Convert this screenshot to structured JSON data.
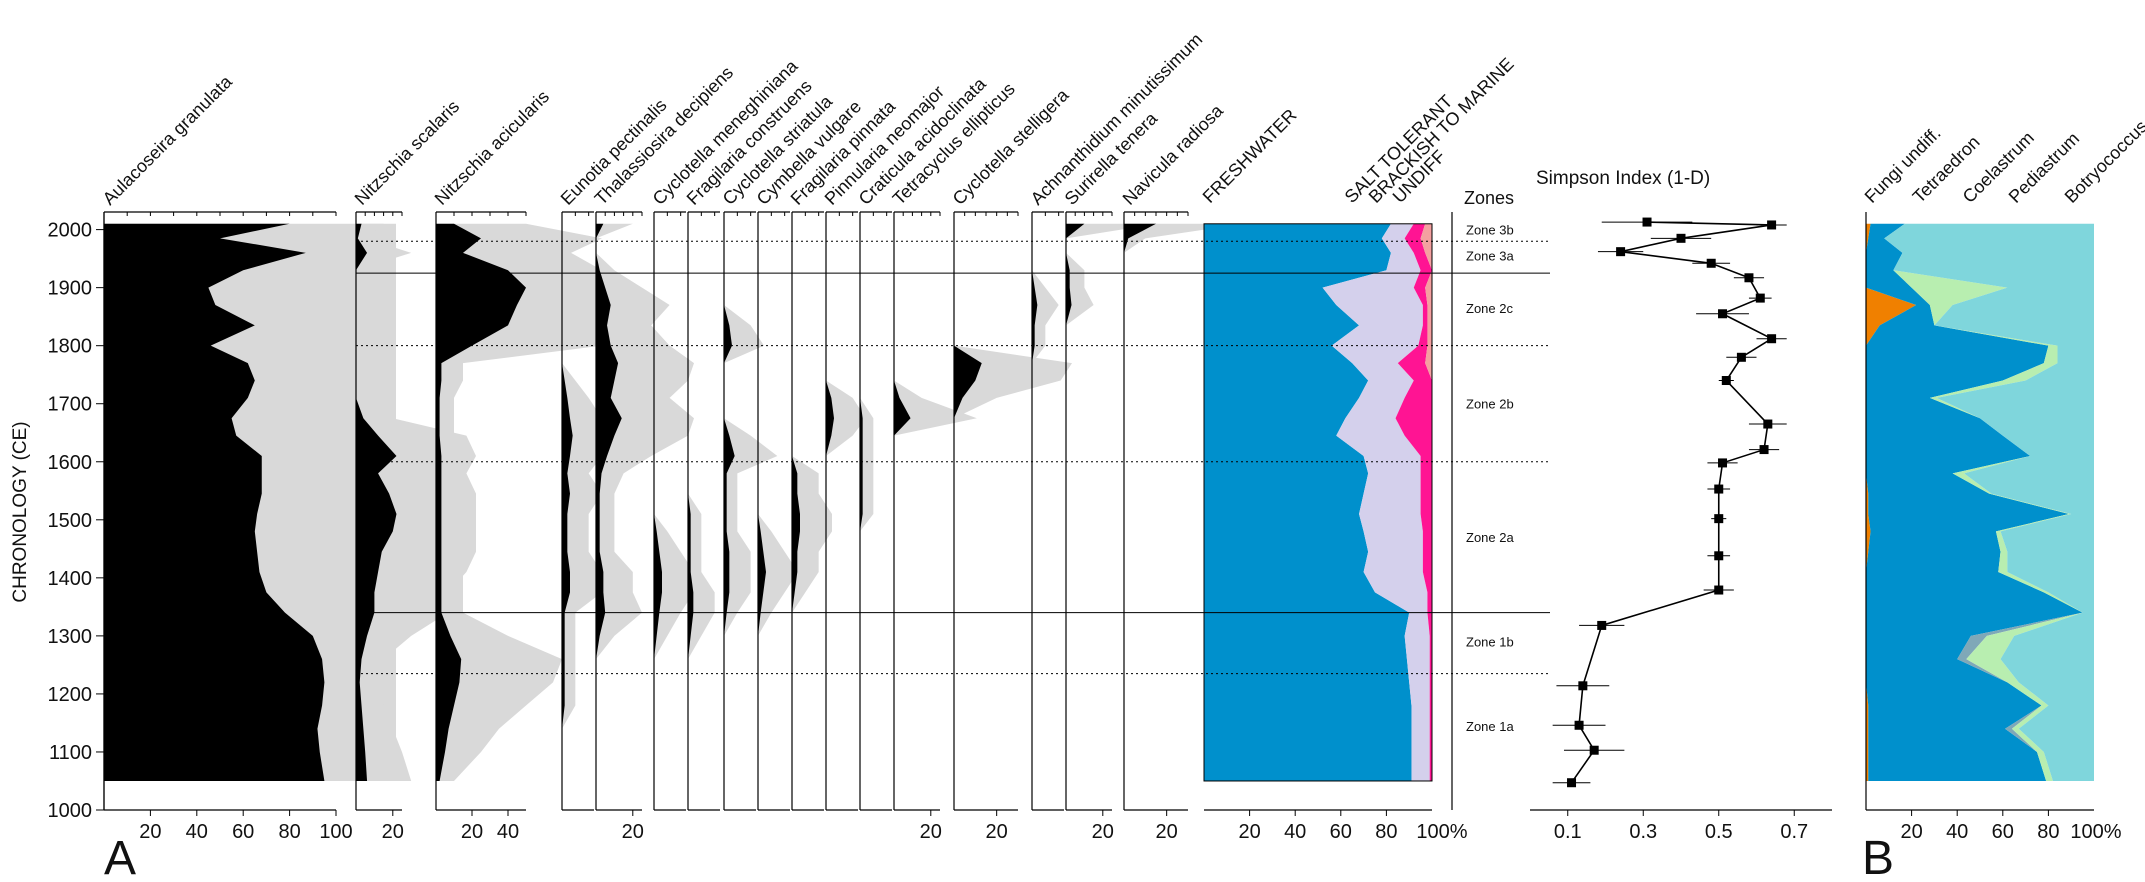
{
  "figure": {
    "panel_labels": [
      "A",
      "B"
    ],
    "y_axis_title": "CHRONOLOGY (CE)",
    "zones_header": "Zones",
    "simpson_title": "Simpson Index (1-D)"
  },
  "chart_data": {
    "type": "area",
    "y_axis": {
      "label": "CHRONOLOGY (CE)",
      "range": [
        1000,
        2020
      ],
      "ticks": [
        1000,
        1100,
        1200,
        1300,
        1400,
        1500,
        1600,
        1700,
        1800,
        1900,
        2000
      ]
    },
    "depth_ages": [
      2010,
      1985,
      1960,
      1930,
      1900,
      1870,
      1835,
      1800,
      1770,
      1740,
      1710,
      1675,
      1645,
      1610,
      1580,
      1545,
      1510,
      1480,
      1445,
      1410,
      1375,
      1340,
      1300,
      1260,
      1220,
      1180,
      1140,
      1100,
      1050
    ],
    "zones": {
      "solid_boundaries": [
        1925,
        1340
      ],
      "dotted_boundaries": [
        1980,
        1800,
        1600,
        1235
      ],
      "labels": [
        {
          "name": "Zone 3b",
          "year": 2000
        },
        {
          "name": "Zone 3a",
          "year": 1955
        },
        {
          "name": "Zone 2c",
          "year": 1865
        },
        {
          "name": "Zone 2b",
          "year": 1700
        },
        {
          "name": "Zone 2a",
          "year": 1470
        },
        {
          "name": "Zone 1b",
          "year": 1290
        },
        {
          "name": "Zone 1a",
          "year": 1145
        }
      ]
    },
    "taxa": [
      {
        "name": "Aulacoseira granulata",
        "xmax": 100,
        "ticks": [
          20,
          40,
          60,
          80,
          100
        ],
        "values": [
          80,
          50,
          87,
          60,
          45,
          48,
          65,
          46,
          62,
          65,
          62,
          55,
          57,
          68,
          68,
          68,
          66,
          65,
          66,
          67,
          70,
          78,
          90,
          94,
          95,
          94,
          92,
          93,
          95
        ]
      },
      {
        "name": "Nitzschia scalaris",
        "xmax": 25,
        "ticks": [
          20
        ],
        "values": [
          3,
          1,
          6,
          0,
          0,
          0,
          0,
          0,
          0,
          0,
          0,
          4,
          12,
          22,
          12,
          18,
          22,
          20,
          14,
          12,
          10,
          10,
          6,
          3,
          2,
          3,
          4,
          5,
          6
        ]
      },
      {
        "name": "Nitzschia acicularis",
        "xmax": 50,
        "ticks": [
          20,
          40
        ],
        "values": [
          10,
          25,
          15,
          40,
          50,
          45,
          40,
          20,
          3,
          3,
          2,
          2,
          2,
          3,
          3,
          3,
          3,
          3,
          3,
          3,
          3,
          3,
          8,
          14,
          13,
          10,
          7,
          5,
          2
        ]
      },
      {
        "name": "Eunotia pectinalis",
        "xmax": 12,
        "ticks": [],
        "values": [
          0,
          0,
          0,
          0,
          0,
          0,
          0,
          0,
          0,
          1,
          2,
          3,
          4,
          3,
          2,
          3,
          2,
          2,
          2,
          3,
          3,
          1,
          1,
          1,
          1,
          1,
          0,
          0,
          0
        ]
      },
      {
        "name": "Thalassiosira decipiens",
        "xmax": 25,
        "ticks": [
          20
        ],
        "values": [
          4,
          0,
          0,
          2,
          5,
          8,
          6,
          8,
          12,
          10,
          8,
          14,
          10,
          6,
          3,
          2,
          2,
          2,
          2,
          4,
          4,
          5,
          2,
          0,
          0,
          0,
          0,
          0,
          0
        ]
      },
      {
        "name": "Cyclotella meneghiniana",
        "xmax": 12,
        "ticks": [],
        "values": [
          0,
          0,
          0,
          0,
          0,
          0,
          0,
          0,
          0,
          0,
          0,
          0,
          0,
          0,
          0,
          0,
          0,
          1,
          2,
          3,
          3,
          2,
          1,
          0,
          0,
          0,
          0,
          0,
          0
        ]
      },
      {
        "name": "Fragilaria construens",
        "xmax": 12,
        "ticks": [],
        "values": [
          0,
          0,
          0,
          0,
          0,
          0,
          0,
          0,
          0,
          0,
          0,
          0,
          0,
          0,
          0,
          0,
          1,
          1,
          1,
          1,
          2,
          2,
          1,
          0,
          0,
          0,
          0,
          0,
          0
        ]
      },
      {
        "name": "Cyclotella striatula",
        "xmax": 12,
        "ticks": [],
        "values": [
          0,
          0,
          0,
          0,
          0,
          0,
          2,
          3,
          0,
          0,
          0,
          0,
          2,
          4,
          1,
          1,
          1,
          1,
          2,
          2,
          2,
          1,
          0,
          0,
          0,
          0,
          0,
          0,
          0
        ]
      },
      {
        "name": "Cymbella vulgare",
        "xmax": 12,
        "ticks": [],
        "values": [
          0,
          0,
          0,
          0,
          0,
          0,
          0,
          0,
          0,
          0,
          0,
          0,
          0,
          0,
          0,
          0,
          0,
          1,
          2,
          3,
          2,
          1,
          0,
          0,
          0,
          0,
          0,
          0,
          0
        ]
      },
      {
        "name": "Fragilaria pinnata",
        "xmax": 12,
        "ticks": [],
        "values": [
          0,
          0,
          0,
          0,
          0,
          0,
          0,
          0,
          0,
          0,
          0,
          0,
          0,
          0,
          2,
          2,
          3,
          3,
          2,
          2,
          1,
          0,
          0,
          0,
          0,
          0,
          0,
          0,
          0
        ]
      },
      {
        "name": "Pinnularia neomajor",
        "xmax": 12,
        "ticks": [],
        "values": [
          0,
          0,
          0,
          0,
          0,
          0,
          0,
          0,
          0,
          0,
          2,
          3,
          2,
          0,
          0,
          0,
          0,
          0,
          0,
          0,
          0,
          0,
          0,
          0,
          0,
          0,
          0,
          0,
          0
        ]
      },
      {
        "name": "Craticula acidoclinata",
        "xmax": 12,
        "ticks": [],
        "values": [
          0,
          0,
          0,
          0,
          0,
          0,
          0,
          0,
          0,
          0,
          0,
          1,
          1,
          1,
          1,
          1,
          1,
          0,
          0,
          0,
          0,
          0,
          0,
          0,
          0,
          0,
          0,
          0,
          0
        ]
      },
      {
        "name": "Tetracyclus ellipticus",
        "xmax": 25,
        "ticks": [
          20
        ],
        "values": [
          0,
          0,
          0,
          0,
          0,
          0,
          0,
          0,
          0,
          0,
          3,
          9,
          0,
          0,
          0,
          0,
          0,
          0,
          0,
          0,
          0,
          0,
          0,
          0,
          0,
          0,
          0,
          0,
          0
        ]
      },
      {
        "name": "Cyclotella stelligera",
        "xmax": 30,
        "ticks": [
          20
        ],
        "values": [
          0,
          0,
          0,
          0,
          0,
          0,
          0,
          0,
          13,
          10,
          4,
          0,
          0,
          0,
          0,
          0,
          0,
          0,
          0,
          0,
          0,
          0,
          0,
          0,
          0,
          0,
          0,
          0,
          0
        ]
      },
      {
        "name": "Achnanthidium minutissimum",
        "xmax": 12,
        "ticks": [],
        "values": [
          0,
          0,
          0,
          0,
          1,
          2,
          1,
          1,
          0,
          0,
          0,
          0,
          0,
          0,
          0,
          0,
          0,
          0,
          0,
          0,
          0,
          0,
          0,
          0,
          0,
          0,
          0,
          0,
          0
        ]
      },
      {
        "name": "Surirella tenera",
        "xmax": 25,
        "ticks": [
          20
        ],
        "values": [
          10,
          0,
          0,
          2,
          2,
          3,
          0,
          0,
          0,
          0,
          0,
          0,
          0,
          0,
          0,
          0,
          0,
          0,
          0,
          0,
          0,
          0,
          0,
          0,
          0,
          0,
          0,
          0,
          0
        ]
      },
      {
        "name": "Navicula radiosa",
        "xmax": 30,
        "ticks": [
          20
        ],
        "values": [
          15,
          2,
          0,
          0,
          0,
          0,
          0,
          0,
          0,
          0,
          0,
          0,
          0,
          0,
          0,
          0,
          0,
          0,
          0,
          0,
          0,
          0,
          0,
          0,
          0,
          0,
          0,
          0,
          0
        ]
      }
    ],
    "salinity_groups": {
      "ticks": [
        20,
        40,
        60,
        80
      ],
      "end_label": "100%",
      "series": [
        {
          "name": "FRESHWATER",
          "color": "#0090CC",
          "values": [
            82,
            78,
            82,
            80,
            52,
            58,
            68,
            56,
            65,
            72,
            68,
            62,
            58,
            70,
            72,
            70,
            68,
            70,
            72,
            70,
            75,
            90,
            88,
            89,
            90,
            91,
            91,
            91,
            91
          ]
        },
        {
          "name": "SALT TOLERANT",
          "color": "#D4D0EC",
          "values": [
            10,
            10,
            10,
            15,
            40,
            38,
            28,
            38,
            20,
            20,
            20,
            22,
            30,
            25,
            23,
            25,
            27,
            26,
            24,
            26,
            23,
            8,
            11,
            10,
            9,
            8,
            8,
            8,
            8
          ]
        },
        {
          "name": "BRACKISH TO MARINE",
          "color": "#FF1493",
          "values": [
            5,
            7,
            5,
            5,
            5,
            2,
            2,
            4,
            12,
            8,
            12,
            16,
            12,
            5,
            5,
            5,
            5,
            4,
            4,
            4,
            2,
            2,
            1,
            1,
            1,
            1,
            1,
            1,
            1
          ]
        },
        {
          "name": "UNDIFF",
          "color": "#F4A0A0",
          "values": [
            3,
            5,
            3,
            0,
            3,
            2,
            2,
            2,
            3,
            0,
            0,
            0,
            0,
            0,
            0,
            0,
            0,
            0,
            0,
            0,
            0,
            0,
            0,
            0,
            0,
            0,
            0,
            0,
            0
          ]
        }
      ]
    },
    "simpson_index": {
      "ticks": [
        0.1,
        0.3,
        0.5,
        0.7
      ],
      "xlim": [
        0,
        0.8
      ],
      "points": [
        {
          "year": 2013,
          "value": 0.31,
          "err": 0.12
        },
        {
          "year": 2008,
          "value": 0.64,
          "err": 0.04
        },
        {
          "year": 1985,
          "value": 0.4,
          "err": 0.08
        },
        {
          "year": 1962,
          "value": 0.24,
          "err": 0.06
        },
        {
          "year": 1942,
          "value": 0.48,
          "err": 0.05
        },
        {
          "year": 1917,
          "value": 0.58,
          "err": 0.04
        },
        {
          "year": 1882,
          "value": 0.61,
          "err": 0.03
        },
        {
          "year": 1855,
          "value": 0.51,
          "err": 0.07
        },
        {
          "year": 1812,
          "value": 0.64,
          "err": 0.04
        },
        {
          "year": 1780,
          "value": 0.56,
          "err": 0.04
        },
        {
          "year": 1740,
          "value": 0.52,
          "err": 0.02
        },
        {
          "year": 1665,
          "value": 0.63,
          "err": 0.05
        },
        {
          "year": 1621,
          "value": 0.62,
          "err": 0.04
        },
        {
          "year": 1598,
          "value": 0.51,
          "err": 0.04
        },
        {
          "year": 1553,
          "value": 0.5,
          "err": 0.03
        },
        {
          "year": 1502,
          "value": 0.5,
          "err": 0.02
        },
        {
          "year": 1438,
          "value": 0.5,
          "err": 0.03
        },
        {
          "year": 1379,
          "value": 0.5,
          "err": 0.04
        },
        {
          "year": 1318,
          "value": 0.19,
          "err": 0.06
        },
        {
          "year": 1214,
          "value": 0.14,
          "err": 0.07
        },
        {
          "year": 1146,
          "value": 0.13,
          "err": 0.07
        },
        {
          "year": 1103,
          "value": 0.17,
          "err": 0.08
        },
        {
          "year": 1047,
          "value": 0.11,
          "err": 0.05
        }
      ]
    },
    "panel_b": {
      "ticks": [
        20,
        40,
        60,
        80
      ],
      "end_label": "100%",
      "series": [
        {
          "name": "Fungi undiff.",
          "color": "#F08000",
          "values": [
            2,
            1,
            0,
            0,
            0,
            22,
            6,
            0,
            0,
            0,
            0,
            0,
            0,
            0,
            0,
            1,
            1,
            2,
            1,
            0,
            0,
            0,
            0,
            0,
            0,
            1,
            1,
            1,
            1
          ]
        },
        {
          "name": "Tetraedron",
          "color": "#0090CC",
          "values": [
            15,
            7,
            16,
            12,
            20,
            6,
            24,
            80,
            78,
            60,
            28,
            50,
            60,
            72,
            38,
            53,
            88,
            55,
            58,
            58,
            78,
            95,
            46,
            40,
            62,
            76,
            60,
            74,
            78
          ]
        },
        {
          "name": "Coelastrum",
          "color": "#7FA8B8",
          "values": [
            0,
            0,
            0,
            0,
            0,
            0,
            0,
            0,
            0,
            0,
            0,
            0,
            0,
            0,
            0,
            0,
            0,
            0,
            0,
            0,
            0,
            0,
            7,
            4,
            0,
            0,
            3,
            0,
            0
          ]
        },
        {
          "name": "Pediastrum",
          "color": "#B8EEB0",
          "values": [
            0,
            0,
            0,
            0,
            42,
            10,
            0,
            4,
            6,
            10,
            3,
            0,
            0,
            0,
            5,
            1,
            1,
            2,
            3,
            4,
            2,
            0,
            12,
            15,
            5,
            3,
            3,
            3,
            3
          ]
        },
        {
          "name": "Botryococcus",
          "color": "#7FD6DC",
          "values": [
            83,
            92,
            84,
            88,
            38,
            62,
            70,
            16,
            16,
            30,
            69,
            50,
            40,
            28,
            57,
            45,
            10,
            41,
            38,
            38,
            20,
            5,
            35,
            41,
            33,
            20,
            33,
            22,
            18
          ]
        }
      ]
    }
  }
}
